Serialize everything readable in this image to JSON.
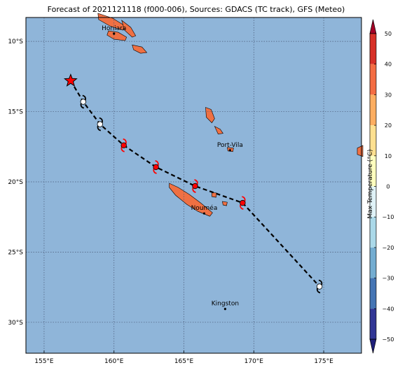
{
  "title": "Forecast of 2021121118 (f000-006), Sources: GDACS (TC track), GFS (Meteo)",
  "colors": {
    "ocean": "#8fb5d9",
    "land": "#ef7043",
    "track": "#000000",
    "gridline": "#4a5a78",
    "forecast_symbol": "#ff0000",
    "past_symbol": "#ffffff",
    "current_position": "#ff0000"
  },
  "map": {
    "lon_range": [
      153.7,
      177.7
    ],
    "lat_range": [
      -32.2,
      -8.3
    ],
    "lon_ticks": [
      {
        "value": 155,
        "label": "155°E"
      },
      {
        "value": 160,
        "label": "160°E"
      },
      {
        "value": 165,
        "label": "165°E"
      },
      {
        "value": 170,
        "label": "170°E"
      },
      {
        "value": 175,
        "label": "175°E"
      }
    ],
    "lat_ticks": [
      {
        "value": -10,
        "label": "10°S"
      },
      {
        "value": -15,
        "label": "15°S"
      },
      {
        "value": -20,
        "label": "20°S"
      },
      {
        "value": -25,
        "label": "25°S"
      },
      {
        "value": -30,
        "label": "30°S"
      }
    ],
    "grid": true
  },
  "cities": [
    {
      "name": "Honiara",
      "lon": 160.0,
      "lat": -9.45
    },
    {
      "name": "Port-Vila",
      "lon": 168.3,
      "lat": -17.75
    },
    {
      "name": "Nouméa",
      "lon": 166.45,
      "lat": -22.25
    },
    {
      "name": "Kingston",
      "lon": 167.95,
      "lat": -29.05
    }
  ],
  "track": {
    "current": {
      "lon": 156.9,
      "lat": -12.8,
      "icon": "star-icon"
    },
    "points": [
      {
        "lon": 156.9,
        "lat": -12.8,
        "type": "current"
      },
      {
        "lon": 157.8,
        "lat": -14.3,
        "type": "past"
      },
      {
        "lon": 159.0,
        "lat": -15.9,
        "type": "past"
      },
      {
        "lon": 160.7,
        "lat": -17.4,
        "type": "forecast"
      },
      {
        "lon": 163.0,
        "lat": -18.95,
        "type": "forecast"
      },
      {
        "lon": 165.8,
        "lat": -20.3,
        "type": "forecast"
      },
      {
        "lon": 169.2,
        "lat": -21.5,
        "type": "forecast"
      },
      {
        "lon": 174.7,
        "lat": -27.45,
        "type": "past"
      }
    ]
  },
  "colorbar": {
    "label": "Max Temperature (°C)",
    "ticks": [
      50,
      40,
      30,
      20,
      10,
      0,
      -10,
      -20,
      -30,
      -40,
      -50
    ],
    "colors": [
      "#a50026",
      "#d73027",
      "#f46d43",
      "#fdae61",
      "#fee090",
      "#ffffbf",
      "#e0f3f8",
      "#abd9e9",
      "#74add1",
      "#4575b4",
      "#313695",
      "#1f1f7a"
    ]
  },
  "islands": [
    {
      "name": "solomon-1",
      "points": [
        [
          158.85,
          -8.0
        ],
        [
          159.9,
          -8.35
        ],
        [
          160.8,
          -8.9
        ],
        [
          160.65,
          -9.2
        ],
        [
          159.7,
          -8.9
        ],
        [
          158.9,
          -8.45
        ]
      ]
    },
    {
      "name": "solomon-guadalcanal",
      "points": [
        [
          159.6,
          -9.25
        ],
        [
          160.3,
          -9.35
        ],
        [
          160.9,
          -9.7
        ],
        [
          160.8,
          -9.95
        ],
        [
          160.0,
          -9.85
        ],
        [
          159.5,
          -9.55
        ]
      ]
    },
    {
      "name": "solomon-malaita",
      "points": [
        [
          160.55,
          -8.5
        ],
        [
          161.2,
          -9.0
        ],
        [
          161.55,
          -9.6
        ],
        [
          161.3,
          -9.7
        ],
        [
          160.75,
          -9.2
        ]
      ]
    },
    {
      "name": "solomon-makira",
      "points": [
        [
          161.3,
          -10.25
        ],
        [
          162.0,
          -10.4
        ],
        [
          162.35,
          -10.8
        ],
        [
          161.9,
          -10.85
        ],
        [
          161.4,
          -10.6
        ]
      ]
    },
    {
      "name": "vanuatu-espiritu",
      "points": [
        [
          166.55,
          -14.7
        ],
        [
          166.95,
          -14.85
        ],
        [
          167.2,
          -15.5
        ],
        [
          167.0,
          -15.8
        ],
        [
          166.6,
          -15.4
        ]
      ]
    },
    {
      "name": "vanuatu-malekula",
      "points": [
        [
          167.2,
          -16.05
        ],
        [
          167.6,
          -16.25
        ],
        [
          167.8,
          -16.55
        ],
        [
          167.45,
          -16.6
        ]
      ]
    },
    {
      "name": "vanuatu-efate",
      "points": [
        [
          168.1,
          -17.55
        ],
        [
          168.55,
          -17.6
        ],
        [
          168.5,
          -17.85
        ],
        [
          168.15,
          -17.8
        ]
      ]
    },
    {
      "name": "new-caledonia",
      "points": [
        [
          163.95,
          -20.1
        ],
        [
          164.6,
          -20.4
        ],
        [
          165.4,
          -20.9
        ],
        [
          166.2,
          -21.5
        ],
        [
          167.05,
          -22.2
        ],
        [
          166.85,
          -22.45
        ],
        [
          166.0,
          -22.1
        ],
        [
          165.2,
          -21.6
        ],
        [
          164.4,
          -20.95
        ],
        [
          163.95,
          -20.4
        ]
      ]
    },
    {
      "name": "loyalty-lifou",
      "points": [
        [
          167.0,
          -20.75
        ],
        [
          167.35,
          -20.8
        ],
        [
          167.3,
          -21.1
        ],
        [
          167.0,
          -21.05
        ]
      ]
    },
    {
      "name": "loyalty-mare",
      "points": [
        [
          167.75,
          -21.4
        ],
        [
          168.1,
          -21.45
        ],
        [
          168.05,
          -21.7
        ],
        [
          167.8,
          -21.65
        ]
      ]
    },
    {
      "name": "fiji-west",
      "points": [
        [
          177.4,
          -17.6
        ],
        [
          177.8,
          -17.4
        ],
        [
          177.8,
          -18.2
        ],
        [
          177.4,
          -18.05
        ]
      ]
    }
  ]
}
